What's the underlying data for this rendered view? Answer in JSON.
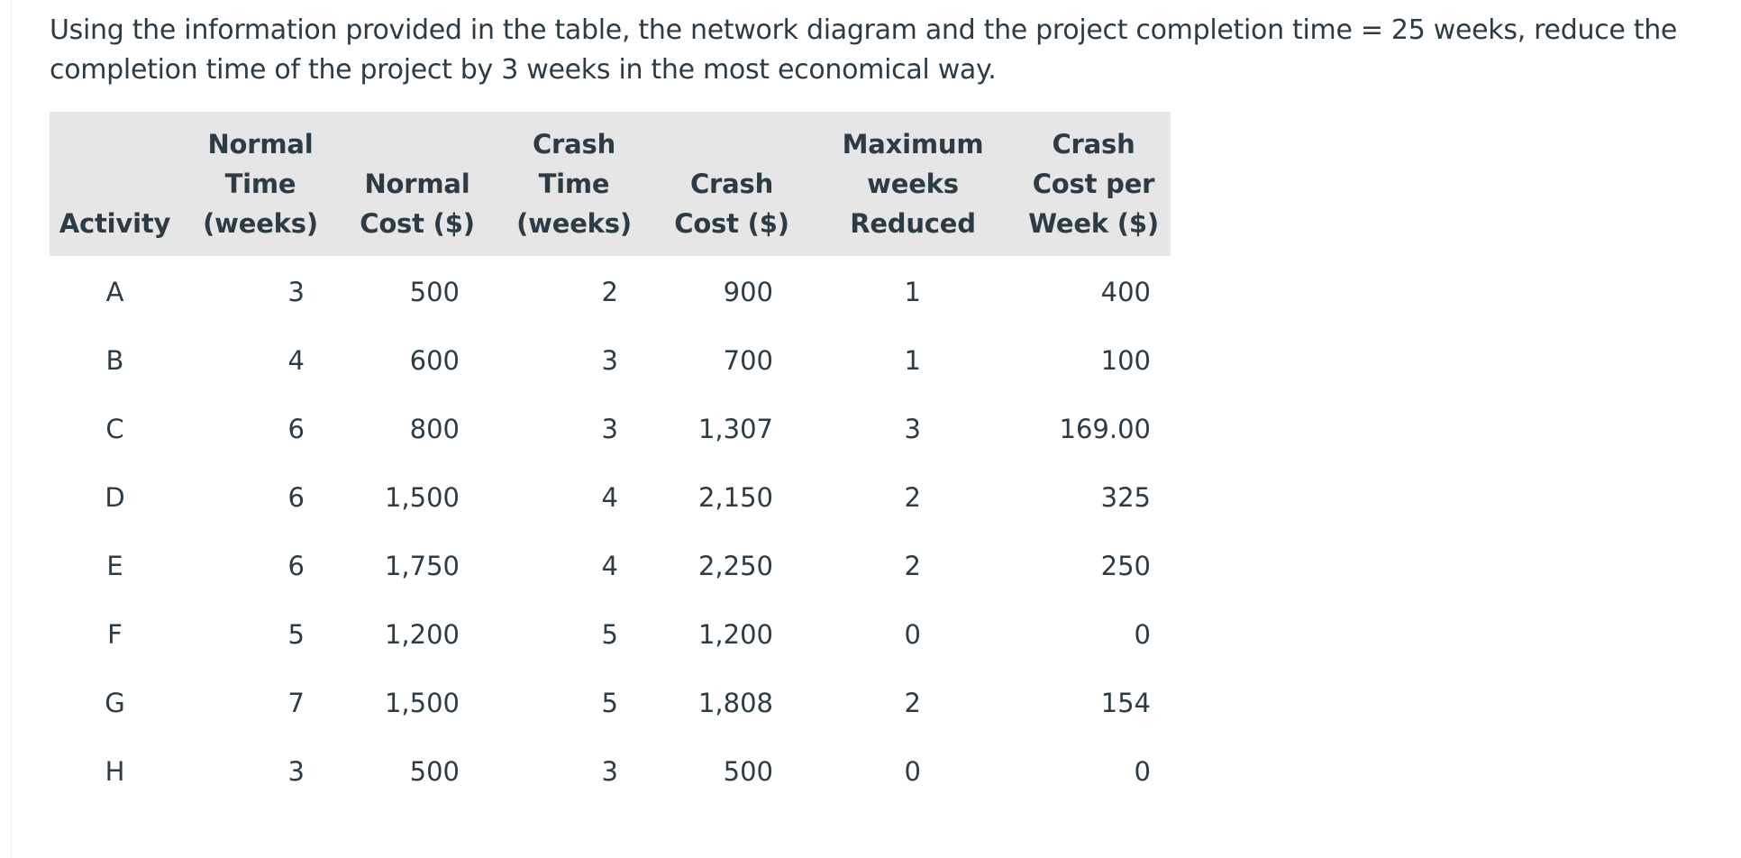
{
  "question": "Using the information provided in the table, the network diagram and the project completion time = 25 weeks, reduce the completion time of the project by 3 weeks in the most economical way.",
  "table": {
    "headers": [
      [
        "Activity"
      ],
      [
        "Normal",
        "Time",
        "(weeks)"
      ],
      [
        "Normal",
        "Cost ($)"
      ],
      [
        "Crash",
        "Time",
        "(weeks)"
      ],
      [
        "Crash",
        "Cost ($)"
      ],
      [
        "Maximum",
        "weeks",
        "Reduced"
      ],
      [
        "Crash",
        "Cost per",
        "Week ($)"
      ]
    ],
    "rows": [
      [
        "A",
        "3",
        "500",
        "2",
        "900",
        "1",
        "400"
      ],
      [
        "B",
        "4",
        "600",
        "3",
        "700",
        "1",
        "100"
      ],
      [
        "C",
        "6",
        "800",
        "3",
        "1,307",
        "3",
        "169.00"
      ],
      [
        "D",
        "6",
        "1,500",
        "4",
        "2,150",
        "2",
        "325"
      ],
      [
        "E",
        "6",
        "1,750",
        "4",
        "2,250",
        "2",
        "250"
      ],
      [
        "F",
        "5",
        "1,200",
        "5",
        "1,200",
        "0",
        "0"
      ],
      [
        "G",
        "7",
        "1,500",
        "5",
        "1,808",
        "2",
        "154"
      ],
      [
        "H",
        "3",
        "500",
        "3",
        "500",
        "0",
        "0"
      ]
    ]
  }
}
